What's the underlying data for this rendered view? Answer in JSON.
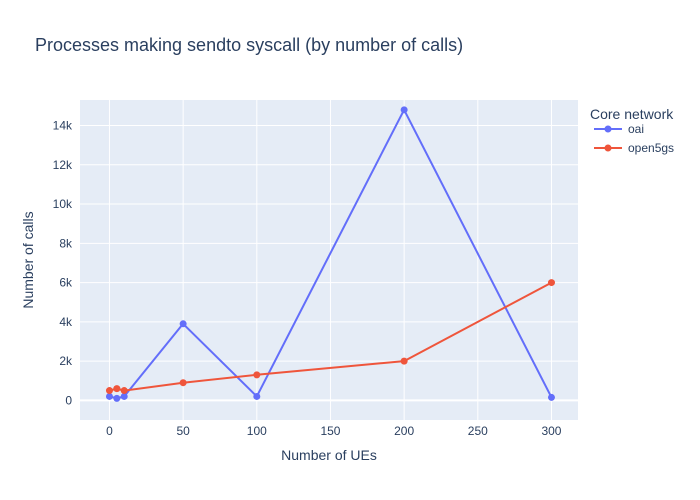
{
  "chart_data": {
    "type": "line",
    "title": "Processes making sendto syscall (by number of calls)",
    "xlabel": "Number of UEs",
    "ylabel": "Number of calls",
    "xlim": [
      -20,
      318
    ],
    "ylim": [
      -1000,
      15300
    ],
    "x_ticks": [
      0,
      50,
      100,
      150,
      200,
      250,
      300
    ],
    "x_tick_labels": [
      "0",
      "50",
      "100",
      "150",
      "200",
      "250",
      "300"
    ],
    "y_ticks": [
      0,
      2000,
      4000,
      6000,
      8000,
      10000,
      12000,
      14000
    ],
    "y_tick_labels": [
      "0",
      "2k",
      "4k",
      "6k",
      "8k",
      "10k",
      "12k",
      "14k"
    ],
    "grid": true,
    "legend": {
      "title": "Core network",
      "placement": "top-right-outside"
    },
    "series": [
      {
        "name": "oai",
        "color": "#636efa",
        "x": [
          0,
          5,
          10,
          50,
          100,
          200,
          300
        ],
        "y": [
          200,
          100,
          200,
          3900,
          200,
          14800,
          150
        ]
      },
      {
        "name": "open5gs",
        "color": "#ef553b",
        "x": [
          0,
          5,
          10,
          50,
          100,
          200,
          300
        ],
        "y": [
          500,
          600,
          500,
          900,
          1300,
          2000,
          6000
        ]
      }
    ]
  }
}
